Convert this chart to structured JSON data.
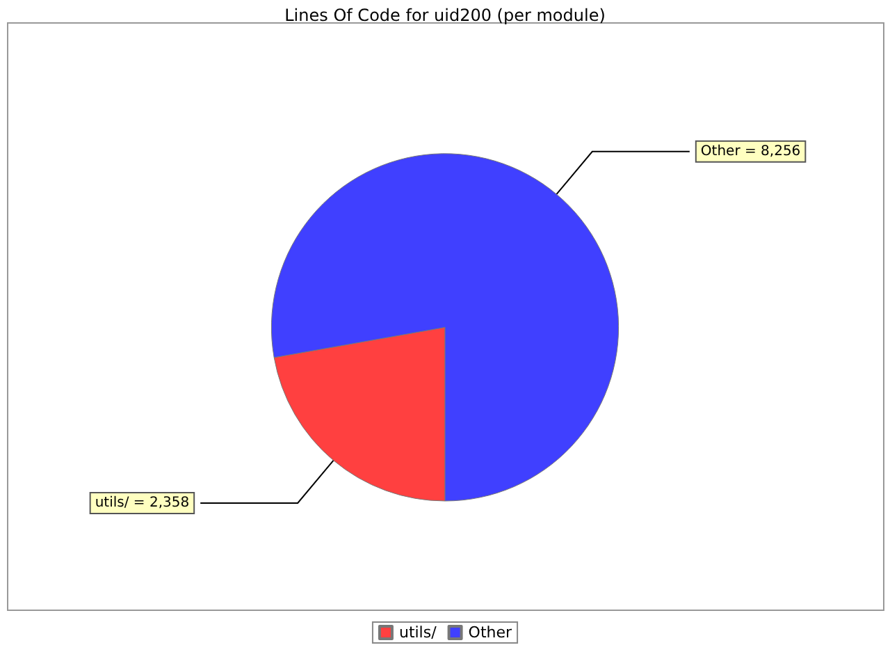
{
  "chart_data": {
    "type": "pie",
    "title": "Lines Of Code for uid200 (per module)",
    "categories": [
      "utils/",
      "Other"
    ],
    "values": [
      2358,
      8256
    ],
    "colors": [
      "#ff4040",
      "#4040ff"
    ],
    "value_labels": [
      "= 2,358",
      "= 8,256"
    ],
    "legend": "bottom"
  }
}
